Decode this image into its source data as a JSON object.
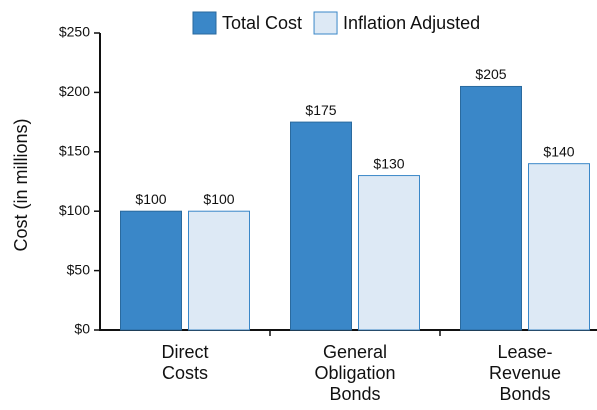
{
  "chart_data": {
    "type": "bar",
    "ylabel": "Cost (in millions)",
    "categories": [
      "Direct\nCosts",
      "General\nObligation\nBonds",
      "Lease-\nRevenue\nBonds"
    ],
    "series": [
      {
        "name": "Total Cost",
        "color": "#3a87c8",
        "values": [
          100,
          175,
          205
        ],
        "value_labels": [
          "$100",
          "$175",
          "$205"
        ]
      },
      {
        "name": "Inflation Adjusted",
        "color": "#dde9f5",
        "values": [
          100,
          130,
          140
        ],
        "value_labels": [
          "$100",
          "$130",
          "$140"
        ]
      }
    ],
    "ylim": [
      0,
      250
    ],
    "yticks": [
      {
        "value": 0,
        "label": "$0"
      },
      {
        "value": 50,
        "label": "$50"
      },
      {
        "value": 100,
        "label": "$100"
      },
      {
        "value": 150,
        "label": "$150"
      },
      {
        "value": 200,
        "label": "$200"
      },
      {
        "value": 250,
        "label": "$250"
      }
    ],
    "legend": "top"
  }
}
